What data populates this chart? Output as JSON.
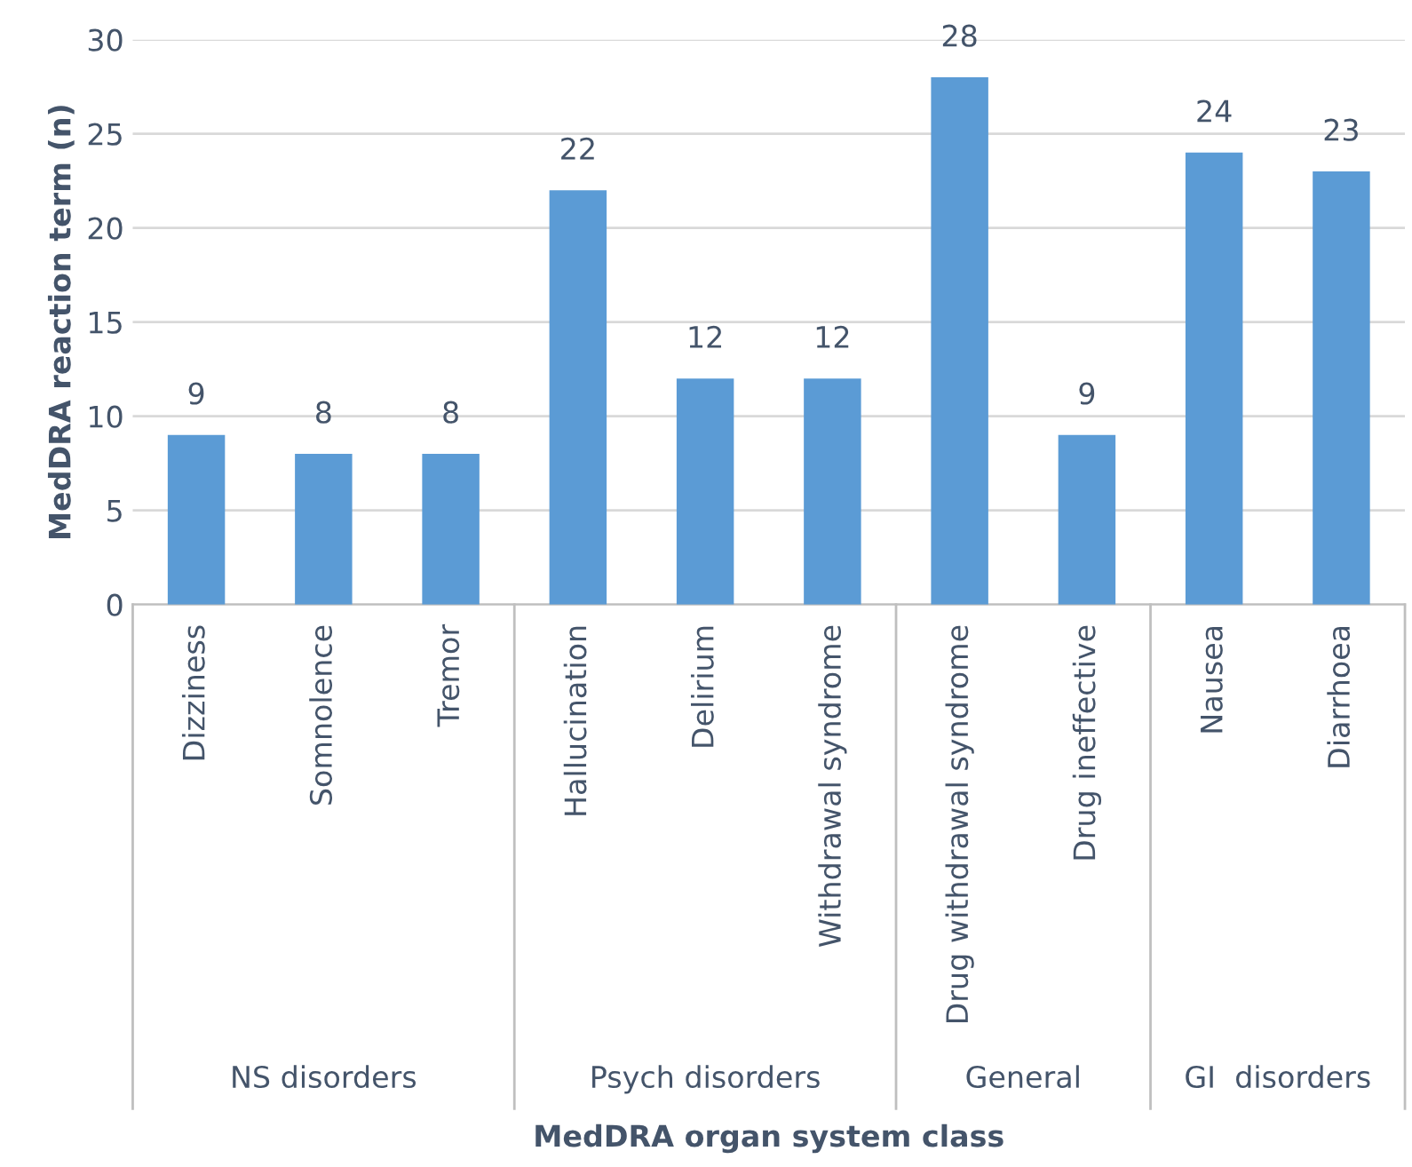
{
  "chart_data": {
    "type": "bar",
    "categories": [
      "Dizziness",
      "Somnolence",
      "Tremor",
      "Hallucination",
      "Delirium",
      "Withdrawal syndrome",
      "Drug withdrawal syndrome",
      "Drug ineffective",
      "Nausea",
      "Diarrhoea"
    ],
    "values": [
      9,
      8,
      8,
      22,
      12,
      12,
      28,
      9,
      24,
      23
    ],
    "color": "#5b9bd5",
    "ylim": [
      0,
      30
    ],
    "yticks": [
      0,
      5,
      10,
      15,
      20,
      25,
      30
    ],
    "grid": "y",
    "data_labels": true,
    "xlabel": "MedDRA organ system class",
    "ylabel": "MedDRA reaction term (n)",
    "annotations": [
      "NS disorders",
      "Psych disorders",
      "General",
      "GI  disorders"
    ]
  }
}
